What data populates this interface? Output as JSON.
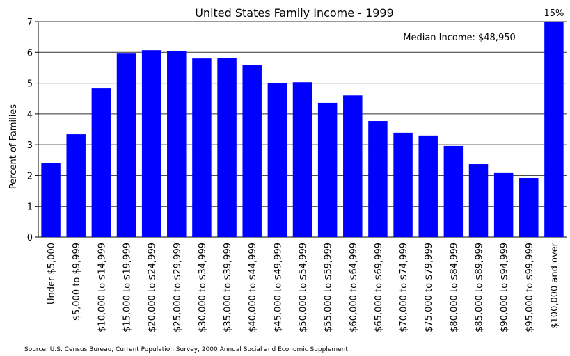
{
  "chart_data": {
    "type": "bar",
    "title": "United States Family Income - 1999",
    "y_label": "Percent of Families",
    "annotation": "Median Income: $48,950",
    "source": "Source: U.S. Census Bureau, Current Population Survey, 2000 Annual Social and Economic Supplement",
    "categories": [
      "Under $5,000",
      "$5,000 to $9,999",
      "$10,000 to $14,999",
      "$15,000 to $19,999",
      "$20,000 to $24,999",
      "$25,000 to $29,999",
      "$30,000 to $34,999",
      "$35,000 to $39,999",
      "$40,000 to $44,999",
      "$45,000 to $49,999",
      "$50,000 to $54,999",
      "$55,000 to $59,999",
      "$60,000 to $64,999",
      "$65,000 to $69,999",
      "$70,000 to $74,999",
      "$75,000 to $79,999",
      "$80,000 to $84,999",
      "$85,000 to $89,999",
      "$90,000 to $94,999",
      "$95,000 to $99,999",
      "$100,000 and over"
    ],
    "values": [
      2.41,
      3.34,
      4.83,
      5.98,
      6.07,
      6.05,
      5.8,
      5.82,
      5.6,
      5.01,
      5.03,
      4.36,
      4.6,
      3.77,
      3.39,
      3.3,
      2.96,
      2.37,
      2.08,
      1.92,
      15
    ],
    "value_labels": [
      null,
      null,
      null,
      null,
      null,
      null,
      null,
      null,
      null,
      null,
      null,
      null,
      null,
      null,
      null,
      null,
      null,
      null,
      null,
      null,
      "15%"
    ],
    "color": "#0000ff",
    "ylim": [
      0,
      7
    ],
    "yticks": [
      0,
      1,
      2,
      3,
      4,
      5,
      6,
      7
    ],
    "grid": true
  }
}
